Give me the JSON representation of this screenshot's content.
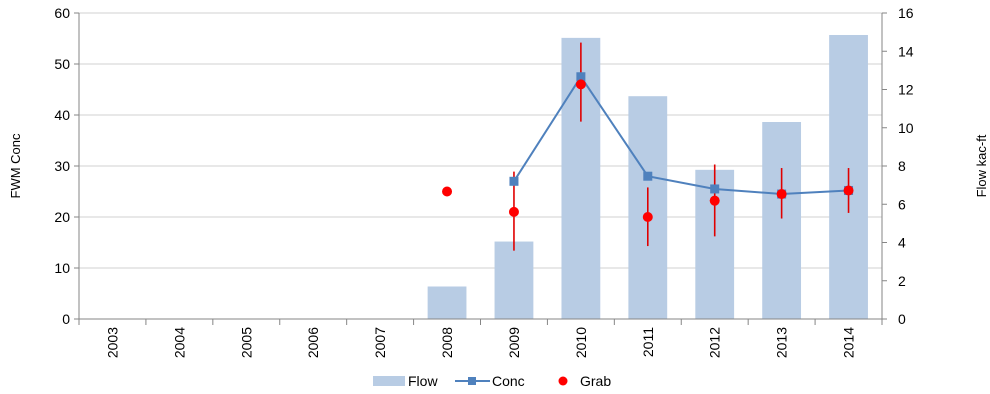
{
  "chart_data": {
    "type": "bar",
    "categories": [
      "2003",
      "2004",
      "2005",
      "2006",
      "2007",
      "2008",
      "2009",
      "2010",
      "2011",
      "2012",
      "2013",
      "2014"
    ],
    "y_left": {
      "label": "FWM Conc",
      "min": 0,
      "max": 60,
      "ticks": [
        0,
        10,
        20,
        30,
        40,
        50,
        60
      ]
    },
    "y_right": {
      "label": "Flow kac-ft",
      "min": 0,
      "max": 16,
      "ticks": [
        0,
        2,
        4,
        6,
        8,
        10,
        12,
        14,
        16
      ]
    },
    "grid": "horizontal",
    "legend_position": "bottom",
    "series": [
      {
        "name": "Flow",
        "kind": "bar",
        "axis": "right",
        "color": "#b8cce4",
        "values": [
          null,
          null,
          null,
          null,
          null,
          1.7,
          4.05,
          14.7,
          11.65,
          7.8,
          10.3,
          14.85
        ]
      },
      {
        "name": "Conc",
        "kind": "line",
        "axis": "left",
        "color": "#4f81bd",
        "values": [
          null,
          null,
          null,
          null,
          null,
          null,
          27,
          47.5,
          28,
          25.5,
          24.5,
          25.2
        ]
      },
      {
        "name": "Grab",
        "kind": "scatter",
        "axis": "left",
        "color": "#ff0000",
        "error_color": "#e00000",
        "values": [
          null,
          null,
          null,
          null,
          null,
          25,
          21,
          46,
          20,
          23.2,
          24.5,
          25.2
        ],
        "error_low": [
          null,
          null,
          null,
          null,
          null,
          null,
          13.4,
          38.7,
          14.3,
          16.2,
          19.7,
          20.8
        ],
        "error_high": [
          null,
          null,
          null,
          null,
          null,
          null,
          28.9,
          54.2,
          25.8,
          30.3,
          29.6,
          29.6
        ]
      }
    ]
  }
}
